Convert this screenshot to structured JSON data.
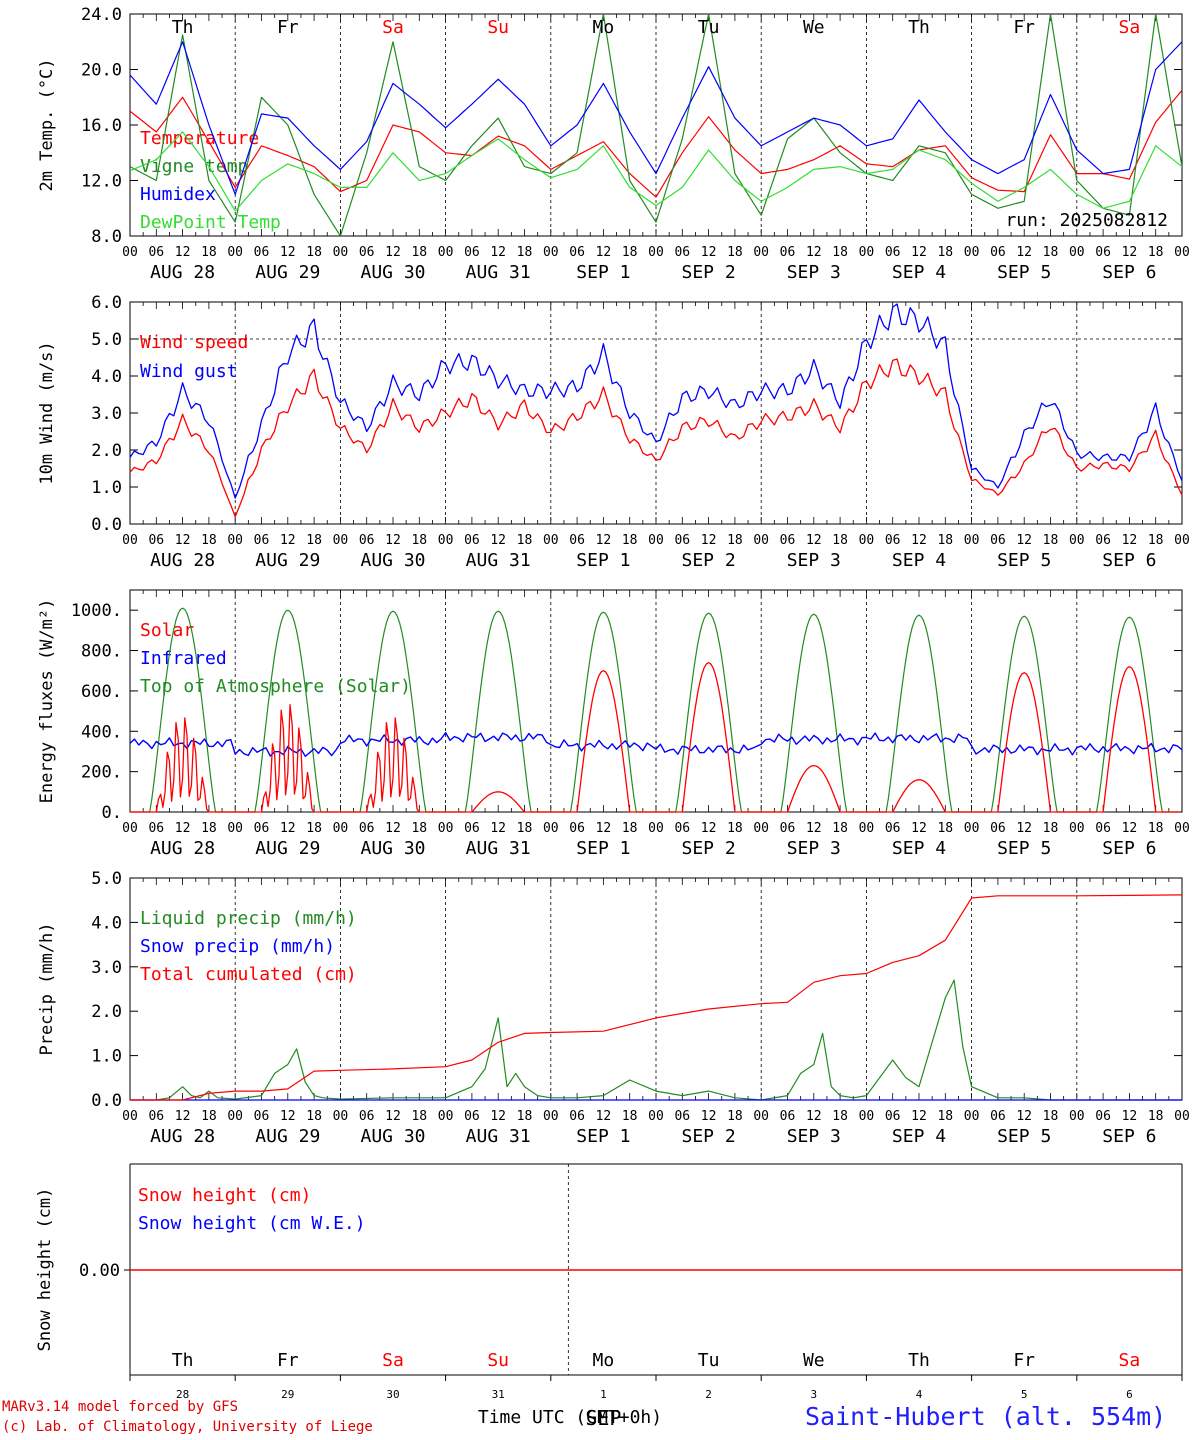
{
  "chart_data": [
    {
      "type": "line",
      "id": "temp",
      "ylabel": "2m Temp. (°C)",
      "ylim": [
        8.0,
        24.0
      ],
      "yticks": [
        "8.0",
        "12.0",
        "16.0",
        "20.0",
        "24.0"
      ],
      "ytick_values": [
        8,
        12,
        16,
        20,
        24
      ],
      "day_names": [
        {
          "label": "Th",
          "color": "#000000"
        },
        {
          "label": "Fr",
          "color": "#000000"
        },
        {
          "label": "Sa",
          "color": "#ff0000"
        },
        {
          "label": "Su",
          "color": "#ff0000"
        },
        {
          "label": "Mo",
          "color": "#000000"
        },
        {
          "label": "Tu",
          "color": "#000000"
        },
        {
          "label": "We",
          "color": "#000000"
        },
        {
          "label": "Th",
          "color": "#000000"
        },
        {
          "label": "Fr",
          "color": "#000000"
        },
        {
          "label": "Sa",
          "color": "#ff0000"
        }
      ],
      "annotation": "run: 2025082812",
      "x_hours": [
        0,
        6,
        12,
        18,
        24,
        30,
        36,
        42,
        48,
        54,
        60,
        66,
        72,
        78,
        84,
        90,
        96,
        102,
        108,
        114,
        120,
        126,
        132,
        138,
        144,
        150,
        156,
        162,
        168,
        174,
        180,
        186,
        192,
        198,
        204,
        210,
        216,
        222,
        228,
        234,
        240
      ],
      "series": [
        {
          "name": "Temperature",
          "color": "#ff0000",
          "values": [
            17.0,
            15.5,
            18.0,
            14.8,
            11.5,
            14.5,
            13.8,
            13.0,
            11.2,
            12.0,
            16.0,
            15.5,
            14.0,
            13.8,
            15.2,
            14.5,
            12.8,
            13.8,
            14.8,
            12.5,
            10.8,
            14.0,
            16.6,
            14.2,
            12.5,
            12.8,
            13.5,
            14.5,
            13.2,
            13.0,
            14.2,
            14.5,
            12.2,
            11.3,
            11.2,
            15.3,
            12.5,
            12.5,
            12.1,
            16.2,
            18.5
          ]
        },
        {
          "name": "Vigne temp",
          "color": "#228b22",
          "values": [
            13.0,
            12.0,
            22.5,
            12.0,
            9.0,
            18.0,
            16.0,
            11.0,
            8.0,
            14.0,
            22.0,
            13.0,
            12.0,
            14.5,
            16.5,
            13.0,
            12.5,
            14.0,
            24.0,
            12.0,
            9.0,
            15.0,
            24.0,
            12.5,
            9.5,
            15.0,
            16.5,
            14.0,
            12.5,
            12.0,
            14.5,
            14.0,
            11.0,
            10.0,
            10.5,
            24.0,
            12.0,
            10.0,
            9.5,
            24.0,
            13.0
          ]
        },
        {
          "name": "Humidex",
          "color": "#0000ff",
          "values": [
            19.6,
            17.5,
            22.0,
            16.0,
            11.0,
            16.8,
            16.5,
            14.5,
            12.8,
            14.8,
            19.0,
            17.5,
            15.8,
            17.5,
            19.3,
            17.5,
            14.5,
            16.0,
            19.0,
            15.5,
            12.5,
            16.5,
            20.2,
            16.5,
            14.5,
            15.5,
            16.5,
            16.0,
            14.5,
            15.0,
            17.8,
            15.5,
            13.5,
            12.5,
            13.5,
            18.2,
            14.2,
            12.5,
            12.8,
            20.0,
            22.0
          ]
        },
        {
          "name": "DewPoint Temp",
          "color": "#33dd33",
          "values": [
            12.7,
            13.5,
            15.5,
            13.0,
            9.8,
            12.0,
            13.2,
            12.5,
            11.5,
            11.5,
            14.0,
            12.0,
            12.5,
            13.8,
            15.0,
            13.5,
            12.2,
            12.8,
            14.5,
            11.5,
            10.2,
            11.5,
            14.2,
            12.0,
            10.5,
            11.5,
            12.8,
            13.0,
            12.5,
            12.8,
            14.2,
            13.5,
            11.8,
            10.5,
            11.5,
            12.8,
            11.0,
            10.0,
            10.5,
            14.5,
            13.0
          ]
        }
      ]
    },
    {
      "type": "line",
      "id": "wind",
      "ylabel": "10m Wind (m/s)",
      "ylim": [
        0.0,
        6.0
      ],
      "yticks": [
        "0.0",
        "1.0",
        "2.0",
        "3.0",
        "4.0",
        "5.0",
        "6.0"
      ],
      "ytick_values": [
        0,
        1,
        2,
        3,
        4,
        5,
        6
      ],
      "reference_line": 5.0,
      "x_hours": [
        0,
        6,
        12,
        18,
        24,
        30,
        36,
        42,
        48,
        54,
        60,
        66,
        72,
        78,
        84,
        90,
        96,
        102,
        108,
        114,
        120,
        126,
        132,
        138,
        144,
        150,
        156,
        162,
        168,
        174,
        180,
        186,
        192,
        198,
        204,
        210,
        216,
        222,
        228,
        234,
        240
      ],
      "series": [
        {
          "name": "Wind speed",
          "color": "#ff0000",
          "values": [
            1.4,
            1.7,
            2.8,
            2.0,
            0.2,
            2.0,
            3.2,
            4.0,
            2.6,
            2.0,
            3.2,
            2.6,
            3.0,
            3.4,
            2.7,
            3.2,
            2.5,
            2.9,
            3.5,
            2.3,
            1.7,
            2.6,
            2.8,
            2.3,
            2.8,
            2.9,
            3.2,
            2.6,
            3.8,
            4.3,
            4.0,
            3.5,
            1.2,
            0.8,
            1.6,
            2.7,
            1.5,
            1.6,
            1.5,
            2.4,
            0.8
          ]
        },
        {
          "name": "Wind gust",
          "color": "#0000ff",
          "values": [
            1.8,
            2.2,
            3.6,
            2.8,
            0.7,
            2.7,
            4.6,
            5.3,
            3.3,
            2.6,
            3.8,
            3.5,
            4.3,
            4.4,
            3.9,
            3.6,
            3.6,
            3.7,
            4.6,
            3.0,
            2.2,
            3.4,
            3.6,
            3.2,
            3.6,
            3.6,
            4.2,
            3.3,
            4.9,
            5.7,
            5.5,
            4.8,
            1.5,
            1.0,
            2.4,
            3.4,
            1.9,
            1.8,
            1.8,
            3.1,
            1.2
          ]
        }
      ]
    },
    {
      "type": "line",
      "id": "flux",
      "ylabel": "Energy fluxes (W/m²)",
      "ylim": [
        0,
        1100
      ],
      "yticks": [
        "0.",
        "200.",
        "400.",
        "600.",
        "800.",
        "1000."
      ],
      "ytick_values": [
        0,
        200,
        400,
        600,
        800,
        1000
      ],
      "series": [
        {
          "name": "Solar",
          "color": "#ff0000",
          "day_peaks": [
            500,
            570,
            500,
            100,
            700,
            740,
            230,
            160,
            690,
            720
          ]
        },
        {
          "name": "Infrared",
          "color": "#0000ff",
          "day_means": [
            340,
            300,
            355,
            370,
            330,
            310,
            360,
            365,
            310,
            315
          ]
        },
        {
          "name": "Top of Atmosphere (Solar)",
          "color": "#228b22",
          "day_peaks": [
            1010,
            1000,
            995,
            995,
            990,
            985,
            980,
            975,
            970,
            965
          ]
        }
      ]
    },
    {
      "type": "line",
      "id": "precip",
      "ylabel": "Precip (mm/h)",
      "ylim": [
        0.0,
        5.0
      ],
      "yticks": [
        "0.0",
        "1.0",
        "2.0",
        "3.0",
        "4.0",
        "5.0"
      ],
      "ytick_values": [
        0,
        1,
        2,
        3,
        4,
        5
      ],
      "series": [
        {
          "name": "Liquid precip (mm/h)",
          "color": "#228b22",
          "x_hours": [
            0,
            6,
            9,
            12,
            14,
            16,
            18,
            20,
            24,
            30,
            33,
            36,
            38,
            40,
            42,
            44,
            48,
            60,
            72,
            78,
            81,
            84,
            86,
            88,
            90,
            93,
            96,
            102,
            108,
            114,
            120,
            126,
            132,
            138,
            144,
            150,
            153,
            156,
            158,
            160,
            162,
            165,
            168,
            174,
            177,
            180,
            183,
            186,
            188,
            190,
            192,
            198,
            204,
            210,
            216,
            240
          ],
          "values": [
            0,
            0,
            0.05,
            0.3,
            0.1,
            0.05,
            0.2,
            0.05,
            0.02,
            0.1,
            0.6,
            0.8,
            1.15,
            0.4,
            0.1,
            0.05,
            0.02,
            0.05,
            0.05,
            0.3,
            0.7,
            1.85,
            0.3,
            0.6,
            0.3,
            0.1,
            0.05,
            0.05,
            0.1,
            0.45,
            0.2,
            0.1,
            0.2,
            0.05,
            0,
            0.1,
            0.6,
            0.8,
            1.5,
            0.3,
            0.1,
            0.05,
            0.1,
            0.9,
            0.5,
            0.3,
            1.3,
            2.3,
            2.7,
            1.2,
            0.3,
            0.05,
            0.05,
            0,
            0,
            0
          ]
        },
        {
          "name": "Snow precip (mm/h)",
          "color": "#0000ff",
          "x_hours": [
            0,
            240
          ],
          "values": [
            0,
            0
          ]
        },
        {
          "name": "Total cumulated (cm)",
          "color": "#ff0000",
          "x_hours": [
            0,
            12,
            18,
            24,
            30,
            36,
            42,
            48,
            60,
            72,
            78,
            84,
            90,
            96,
            108,
            120,
            132,
            144,
            150,
            156,
            162,
            168,
            174,
            180,
            186,
            192,
            198,
            204,
            216,
            240
          ],
          "values": [
            0,
            0,
            0.15,
            0.2,
            0.2,
            0.25,
            0.65,
            0.67,
            0.7,
            0.75,
            0.9,
            1.3,
            1.5,
            1.52,
            1.55,
            1.85,
            2.05,
            2.17,
            2.2,
            2.65,
            2.8,
            2.85,
            3.1,
            3.25,
            3.6,
            4.55,
            4.6,
            4.6,
            4.6,
            4.62
          ]
        }
      ]
    },
    {
      "type": "line",
      "id": "snow",
      "ylabel": "Snow height (cm)",
      "ytick_label": "0.00",
      "series": [
        {
          "name": "Snow height (cm)",
          "color": "#ff0000",
          "values": [
            0,
            0
          ]
        },
        {
          "name": "Snow height (cm W.E.)",
          "color": "#0000ff",
          "values": [
            0,
            0
          ]
        }
      ],
      "day_names": [
        {
          "label": "Th",
          "color": "#000000"
        },
        {
          "label": "Fr",
          "color": "#000000"
        },
        {
          "label": "Sa",
          "color": "#ff0000"
        },
        {
          "label": "Su",
          "color": "#ff0000"
        },
        {
          "label": "Mo",
          "color": "#000000"
        },
        {
          "label": "Tu",
          "color": "#000000"
        },
        {
          "label": "We",
          "color": "#000000"
        },
        {
          "label": "Th",
          "color": "#000000"
        },
        {
          "label": "Fr",
          "color": "#000000"
        },
        {
          "label": "Sa",
          "color": "#ff0000"
        }
      ],
      "day_numbers": [
        "28",
        "29",
        "30",
        "31",
        "1",
        "2",
        "3",
        "4",
        "5",
        "6"
      ],
      "month_label": "SEP"
    }
  ],
  "x_axis": {
    "hour_ticks": [
      "00",
      "06",
      "12",
      "18"
    ],
    "end_tick": "00",
    "date_labels": [
      "AUG 28",
      "AUG 29",
      "AUG 30",
      "AUG 31",
      "SEP  1",
      "SEP  2",
      "SEP  3",
      "SEP  4",
      "SEP  5",
      "SEP  6"
    ],
    "xlabel": "Time UTC (GMT+0h)"
  },
  "footer": {
    "credit_line1": "MARv3.14 model forced by GFS",
    "credit_line2": "(c) Lab. of Climatology, University of Liege",
    "station": "Saint-Hubert (alt. 554m)"
  }
}
